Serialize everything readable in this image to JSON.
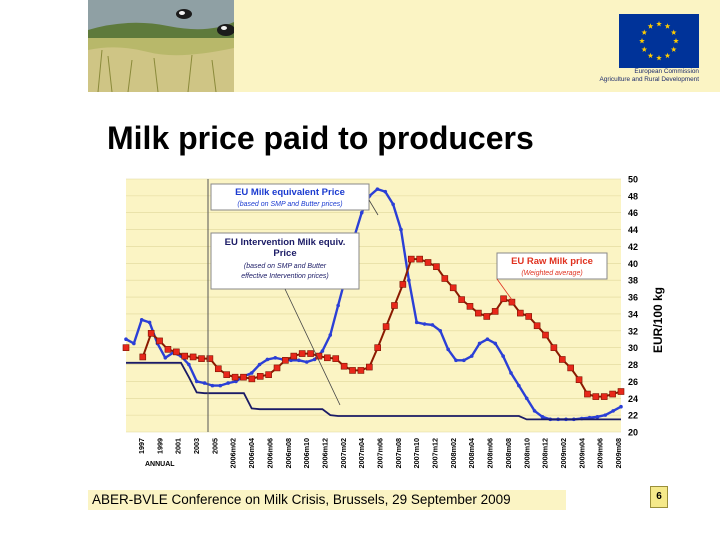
{
  "slide": {
    "title": "Milk price paid to producers",
    "footer": "ABER-BVLE Conference on Milk Crisis, Brussels, 29 September 2009",
    "page_number": "6"
  },
  "header": {
    "org_line1": "European Commission",
    "org_line2": "Agriculture and Rural Development"
  },
  "colors": {
    "header_band": "#fbf4c4",
    "eu_blue": "#003399",
    "eu_star": "#ffcc00",
    "plot_bg": "#fbf4c4",
    "series_equiv": "#2b3fd6",
    "series_raw": "#8b1a00",
    "series_raw_marker": "#e8271a",
    "series_intervention": "#1b1b66",
    "callout_red": "#e0311f"
  },
  "chart_data": {
    "type": "line",
    "ylabel": "EUR/100 kg",
    "ylim": [
      20,
      50
    ],
    "y_ticks": [
      "20",
      "22",
      "24",
      "26",
      "28",
      "30",
      "32",
      "34",
      "36",
      "38",
      "40",
      "42",
      "44",
      "46",
      "48",
      "50"
    ],
    "annual_label": "ANNUAL",
    "x_ticks": [
      "1997",
      "1999",
      "2001",
      "2003",
      "2005",
      "2006m02",
      "2006m04",
      "2006m06",
      "2006m08",
      "2006m10",
      "2006m12",
      "2007m02",
      "2007m04",
      "2007m06",
      "2007m08",
      "2007m10",
      "2007m12",
      "2008m02",
      "2008m04",
      "2008m06",
      "2008m08",
      "2008m10",
      "2008m12",
      "2009m02",
      "2009m04",
      "2009m06",
      "2009m08"
    ],
    "series": [
      {
        "name": "EU Milk equivalent Price",
        "key": "equiv",
        "values": [
          31,
          30.5,
          33.3,
          33.0,
          30.5,
          28.8,
          29.4,
          29.0,
          28.0,
          26.0,
          25.8,
          25.5,
          25.5,
          25.8,
          26.0,
          26.6,
          27.0,
          28.0,
          28.6,
          28.8,
          28.6,
          28.5,
          28.5,
          28.3,
          28.6,
          29.6,
          31.5,
          35.0,
          38.5,
          43.0,
          46.0,
          48.0,
          48.8,
          48.5,
          47.0,
          44.0,
          38.0,
          33.0,
          32.8,
          32.7,
          32.0,
          29.8,
          28.5,
          28.5,
          29.0,
          30.5,
          31.0,
          30.5,
          29.0,
          27.0,
          25.5,
          24.0,
          22.5,
          21.8,
          21.5,
          21.5,
          21.5,
          21.5,
          21.6,
          21.7,
          21.8,
          22.0,
          22.5,
          23.0
        ]
      },
      {
        "name": "EU Intervention Milk equiv. Price",
        "key": "intervention",
        "values": [
          28.2,
          28.2,
          28.2,
          28.2,
          28.2,
          28.2,
          28.2,
          28.2,
          26.5,
          24.7,
          24.6,
          24.6,
          24.6,
          24.6,
          24.6,
          24.6,
          22.8,
          22.7,
          22.7,
          22.7,
          22.7,
          22.7,
          22.7,
          22.7,
          22.7,
          22.7,
          22.0,
          21.9,
          21.9,
          21.9,
          21.9,
          21.9,
          21.9,
          21.9,
          21.9,
          21.9,
          21.9,
          21.9,
          21.9,
          21.9,
          21.9,
          21.9,
          21.9,
          21.9,
          21.9,
          21.9,
          21.9,
          21.9,
          21.9,
          21.9,
          21.9,
          21.5,
          21.5,
          21.5,
          21.5,
          21.5,
          21.5,
          21.5,
          21.5,
          21.5,
          21.5,
          21.5,
          21.5,
          21.5
        ]
      },
      {
        "name": "EU Raw Milk price",
        "key": "raw",
        "values": [
          30.0,
          null,
          28.9,
          31.7,
          30.8,
          29.8,
          29.5,
          29.0,
          28.9,
          28.7,
          28.7,
          27.5,
          26.8,
          26.5,
          26.5,
          26.3,
          26.6,
          26.8,
          27.6,
          28.5,
          29.0,
          29.3,
          29.3,
          29.0,
          28.8,
          28.7,
          27.8,
          27.3,
          27.3,
          27.7,
          30.0,
          32.5,
          35.0,
          37.5,
          40.5,
          40.5,
          40.1,
          39.6,
          38.2,
          37.1,
          35.7,
          34.9,
          34.1,
          33.7,
          34.3,
          35.8,
          35.4,
          34.1,
          33.7,
          32.6,
          31.5,
          30.0,
          28.6,
          27.6,
          26.2,
          24.5,
          24.2,
          24.2,
          24.5,
          24.8
        ]
      }
    ],
    "annotations": {
      "equiv_title": "EU Milk equivalent Price",
      "equiv_note": "(based on SMP and Butter prices)",
      "intervention_title": "EU Intervention Milk equiv.",
      "intervention_title2": "Price",
      "intervention_note1": "(based on SMP and Butter",
      "intervention_note2": "effective Intervention prices)",
      "raw_title": "EU Raw Milk price",
      "raw_note": "(Weighted average)"
    }
  }
}
